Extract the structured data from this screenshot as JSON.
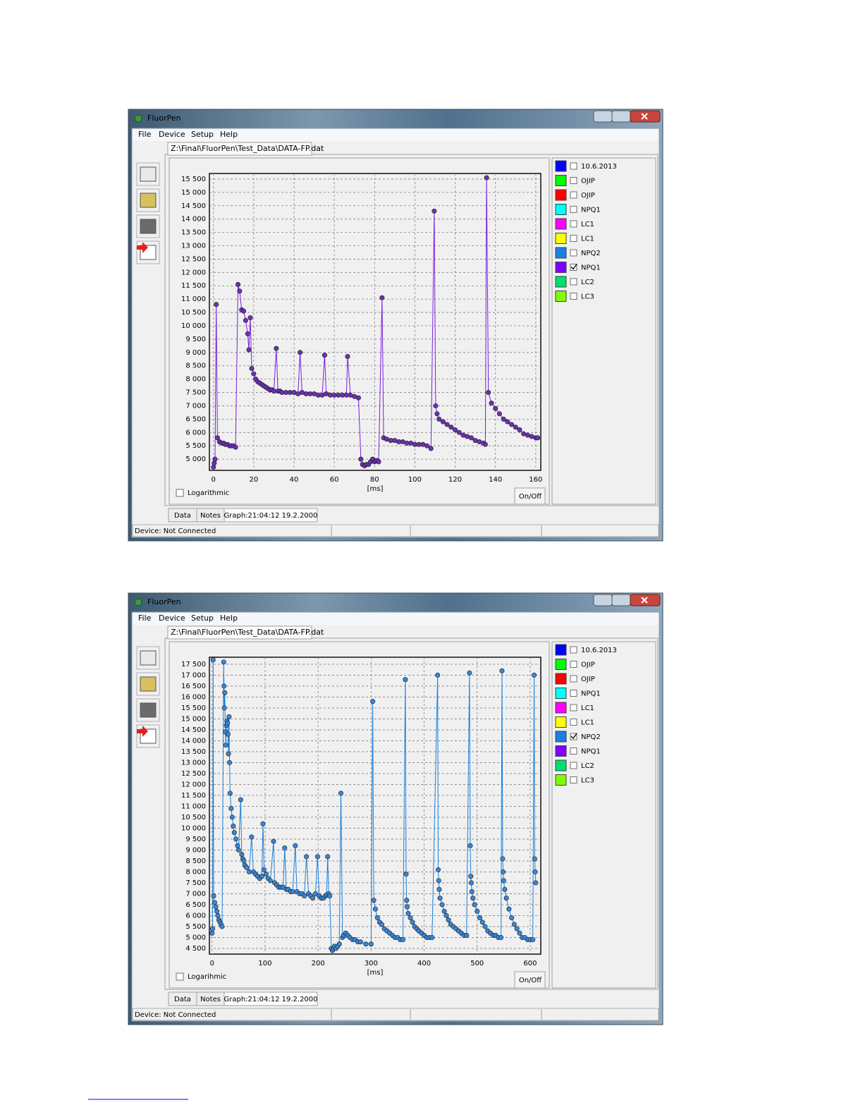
{
  "windows": [
    {
      "title": "FluorPen",
      "menu": [
        "File",
        "Device",
        "Setup",
        "Help"
      ],
      "file_tab": "Z:\\Final\\FluorPen\\Test_Data\\DATA-FP.dat",
      "legend": [
        {
          "label": "10.6.2013",
          "color": "#0000ff",
          "checked": false
        },
        {
          "label": "OJIP",
          "color": "#00ff00",
          "checked": false
        },
        {
          "label": "OJIP",
          "color": "#ff0000",
          "checked": false
        },
        {
          "label": "NPQ1",
          "color": "#00ffff",
          "checked": false
        },
        {
          "label": "LC1",
          "color": "#ff00ff",
          "checked": false
        },
        {
          "label": "LC1",
          "color": "#ffff00",
          "checked": false
        },
        {
          "label": "NPQ2",
          "color": "#1a80e6",
          "checked": false
        },
        {
          "label": "NPQ1",
          "color": "#8000ff",
          "checked": true
        },
        {
          "label": "LC2",
          "color": "#00e070",
          "checked": false
        },
        {
          "label": "LC3",
          "color": "#80ff00",
          "checked": false
        }
      ],
      "log_label": "Logarithmic",
      "on_off": "On/Off",
      "tabs": [
        "Data",
        "Notes",
        "Graph:21:04:12  19.2.2000"
      ],
      "status": "Device: Not Connected"
    },
    {
      "title": "FluorPen",
      "menu": [
        "File",
        "Device",
        "Setup",
        "Help"
      ],
      "file_tab": "Z:\\Final\\FluorPen\\Test_Data\\DATA-FP.dat",
      "legend": [
        {
          "label": "10.6.2013",
          "color": "#0000ff",
          "checked": false
        },
        {
          "label": "OJIP",
          "color": "#00ff00",
          "checked": false
        },
        {
          "label": "OJIP",
          "color": "#ff0000",
          "checked": false
        },
        {
          "label": "NPQ1",
          "color": "#00ffff",
          "checked": false
        },
        {
          "label": "LC1",
          "color": "#ff00ff",
          "checked": false
        },
        {
          "label": "LC1",
          "color": "#ffff00",
          "checked": false
        },
        {
          "label": "NPQ2",
          "color": "#1a80e6",
          "checked": true
        },
        {
          "label": "NPQ1",
          "color": "#8000ff",
          "checked": false
        },
        {
          "label": "LC2",
          "color": "#00e070",
          "checked": false
        },
        {
          "label": "LC3",
          "color": "#80ff00",
          "checked": false
        }
      ],
      "log_label": "Logarihmic",
      "on_off": "On/Off",
      "tabs": [
        "Data",
        "Notes",
        "Graph:21:04:12  19.2.2000"
      ],
      "status": "Device: Not Connected"
    }
  ],
  "chart_data": [
    {
      "type": "line",
      "x_label": "[ms]",
      "grid": true,
      "x": [
        0,
        0.4,
        0.8,
        1.4,
        2,
        3,
        4,
        5,
        6,
        7,
        8,
        9,
        10,
        11,
        12.2,
        13,
        14,
        15,
        16,
        17,
        17.6,
        18.3,
        19,
        20,
        21,
        22,
        23,
        24,
        25,
        26,
        27,
        28,
        29,
        30,
        31.2,
        32,
        33,
        34,
        36,
        38,
        40,
        42,
        43,
        44,
        46,
        48,
        50,
        52,
        54,
        55.2,
        56,
        58,
        60,
        62,
        64,
        66,
        66.6,
        68,
        70,
        72,
        73.2,
        74,
        75,
        76,
        77,
        78,
        79,
        80,
        81,
        82,
        83.7,
        84.5,
        86,
        88,
        90,
        92,
        94,
        96,
        98,
        100,
        102,
        104,
        106,
        108,
        109.6,
        110.3,
        111,
        112,
        114,
        116,
        118,
        120,
        122,
        124,
        126,
        128,
        130,
        132,
        134,
        135,
        135.6,
        136.5,
        138,
        140,
        142,
        144,
        146,
        148,
        150,
        152,
        154,
        156,
        158,
        160,
        161
      ],
      "series": [
        {
          "color": "#7a1fe0",
          "marker_color": "#6a32b0",
          "values": [
            4700,
            4850,
            5000,
            10800,
            5800,
            5650,
            5600,
            5600,
            5550,
            5550,
            5500,
            5500,
            5500,
            5450,
            11550,
            11300,
            10600,
            10550,
            10200,
            9700,
            9100,
            10300,
            8400,
            8200,
            8000,
            7900,
            7850,
            7800,
            7750,
            7700,
            7650,
            7600,
            7600,
            7550,
            9150,
            7550,
            7550,
            7500,
            7500,
            7500,
            7500,
            7450,
            9000,
            7500,
            7450,
            7450,
            7450,
            7400,
            7400,
            8900,
            7450,
            7400,
            7400,
            7400,
            7400,
            7400,
            8850,
            7400,
            7350,
            7300,
            5000,
            4800,
            4750,
            4800,
            4800,
            4900,
            5000,
            4900,
            4950,
            4900,
            11050,
            5800,
            5750,
            5700,
            5700,
            5650,
            5650,
            5600,
            5600,
            5550,
            5550,
            5550,
            5500,
            5400,
            14300,
            7000,
            6700,
            6500,
            6400,
            6300,
            6200,
            6100,
            6000,
            5900,
            5850,
            5800,
            5700,
            5650,
            5600,
            5550,
            15550,
            7500,
            7100,
            6900,
            6700,
            6500,
            6400,
            6300,
            6200,
            6100,
            5950,
            5900,
            5850,
            5800,
            5800
          ]
        }
      ],
      "xlim": [
        -2,
        162.5
      ],
      "ylim": [
        4580,
        15710
      ],
      "xticks": [
        0,
        20,
        40,
        60,
        80,
        100,
        120,
        140,
        160
      ],
      "yticks": [
        {
          "value": 5000,
          "label": "5 000"
        },
        {
          "value": 5500,
          "label": "5 500"
        },
        {
          "value": 6000,
          "label": "6 000"
        },
        {
          "value": 6500,
          "label": "6 500"
        },
        {
          "value": 7000,
          "label": "7 000"
        },
        {
          "value": 7500,
          "label": "7 500"
        },
        {
          "value": 8000,
          "label": "8 000"
        },
        {
          "value": 8500,
          "label": "8 500"
        },
        {
          "value": 9000,
          "label": "9 000"
        },
        {
          "value": 9500,
          "label": "9 500"
        },
        {
          "value": 10000,
          "label": "10 000"
        },
        {
          "value": 10500,
          "label": "10 500"
        },
        {
          "value": 11000,
          "label": "11 000"
        },
        {
          "value": 11500,
          "label": "11 500"
        },
        {
          "value": 12000,
          "label": "12 000"
        },
        {
          "value": 12500,
          "label": "12 500"
        },
        {
          "value": 13000,
          "label": "13 000"
        },
        {
          "value": 13500,
          "label": "13 500"
        },
        {
          "value": 14000,
          "label": "14 000"
        },
        {
          "value": 14500,
          "label": "14 500"
        },
        {
          "value": 15000,
          "label": "15 000"
        },
        {
          "value": 15500,
          "label": "15 500"
        }
      ]
    },
    {
      "type": "line",
      "x_label": "[ms]",
      "grid": true,
      "x": [
        0,
        1,
        2,
        3,
        5,
        7,
        9,
        11,
        13,
        15,
        17,
        19,
        22,
        22.5,
        23,
        24,
        25,
        26,
        27,
        28,
        29,
        30,
        31,
        32,
        33,
        34,
        36,
        38,
        40,
        42,
        45,
        48,
        50,
        54,
        56,
        58,
        60,
        62,
        65,
        70,
        74.5,
        78,
        82,
        86,
        90,
        94,
        96,
        98,
        102,
        106,
        110,
        116,
        118,
        122,
        126,
        130,
        134,
        137,
        140,
        144,
        148,
        152,
        157,
        160,
        165,
        170,
        174,
        178,
        182,
        186,
        190,
        195,
        199,
        202,
        206,
        210,
        214,
        216,
        218,
        220,
        222,
        225,
        227,
        229,
        231,
        234,
        237,
        240,
        243,
        246,
        248,
        252,
        256,
        260,
        265,
        270,
        275,
        280,
        290,
        300,
        303,
        305,
        308,
        312,
        316,
        320,
        325,
        330,
        335,
        340,
        345,
        350,
        355,
        360,
        364.5,
        366,
        367,
        368,
        370,
        374,
        378,
        382,
        386,
        390,
        395,
        400,
        405,
        410,
        415,
        425.5,
        426.5,
        427.5,
        428.5,
        430,
        434,
        438,
        442,
        446,
        450,
        455,
        460,
        465,
        470,
        475,
        480,
        485.6,
        487,
        488,
        489,
        490,
        492,
        495,
        500,
        505,
        510,
        515,
        520,
        525,
        530,
        535,
        540,
        545,
        546.8,
        548,
        549,
        550,
        552,
        555,
        560,
        565,
        570,
        575,
        580,
        585,
        590,
        595,
        600,
        605,
        607.5,
        608.5,
        609.5,
        610.5
      ],
      "series": [
        {
          "color": "#1a80d8",
          "marker_color": "#3a86d8",
          "values": [
            5200,
            5400,
            17700,
            6900,
            6600,
            6400,
            6200,
            6000,
            5800,
            5700,
            5600,
            5500,
            17600,
            16500,
            15500,
            16200,
            14400,
            13800,
            14700,
            14900,
            14800,
            14300,
            13400,
            15100,
            13000,
            11600,
            10900,
            10500,
            10100,
            9800,
            9500,
            9200,
            9000,
            11300,
            8800,
            8600,
            8500,
            8300,
            8200,
            8000,
            9600,
            8000,
            7900,
            7800,
            7700,
            7800,
            10200,
            8100,
            7900,
            7700,
            7600,
            9400,
            7500,
            7400,
            7300,
            7300,
            7300,
            9100,
            7200,
            7200,
            7100,
            7100,
            9200,
            7100,
            7000,
            7000,
            6900,
            8700,
            7000,
            6900,
            6800,
            7000,
            8700,
            6900,
            6800,
            6800,
            6900,
            6950,
            8700,
            7000,
            6900,
            4500,
            4400,
            4500,
            4600,
            4500,
            4600,
            4700,
            11600,
            5000,
            5100,
            5200,
            5100,
            5000,
            4900,
            4900,
            4800,
            4800,
            4700,
            4700,
            15800,
            6700,
            6300,
            5900,
            5700,
            5600,
            5400,
            5300,
            5200,
            5100,
            5000,
            5000,
            4900,
            4900,
            16800,
            7900,
            6700,
            6400,
            6100,
            5900,
            5700,
            5500,
            5400,
            5300,
            5200,
            5100,
            5000,
            5000,
            5000,
            17000,
            8100,
            7600,
            7200,
            6800,
            6500,
            6200,
            6000,
            5800,
            5600,
            5500,
            5400,
            5300,
            5200,
            5100,
            5100,
            17100,
            9200,
            7800,
            7500,
            7100,
            6800,
            6500,
            6200,
            5900,
            5700,
            5500,
            5300,
            5200,
            5100,
            5100,
            5000,
            5000,
            17200,
            8600,
            8000,
            7600,
            7200,
            6800,
            6300,
            5900,
            5600,
            5400,
            5200,
            5000,
            5000,
            4900,
            4900,
            4900,
            17000,
            8600,
            8000,
            7500
          ]
        }
      ],
      "xlim": [
        -5,
        620
      ],
      "ylim": [
        4240,
        17820
      ],
      "xticks": [
        0,
        100,
        200,
        300,
        400,
        500,
        600
      ],
      "yticks": [
        {
          "value": 4500,
          "label": "4 500"
        },
        {
          "value": 5000,
          "label": "5 000"
        },
        {
          "value": 5500,
          "label": "5 500"
        },
        {
          "value": 6000,
          "label": "6 000"
        },
        {
          "value": 6500,
          "label": "6 500"
        },
        {
          "value": 7000,
          "label": "7 000"
        },
        {
          "value": 7500,
          "label": "7 500"
        },
        {
          "value": 8000,
          "label": "8 000"
        },
        {
          "value": 8500,
          "label": "8 500"
        },
        {
          "value": 9000,
          "label": "9 000"
        },
        {
          "value": 9500,
          "label": "9 500"
        },
        {
          "value": 10000,
          "label": "10 000"
        },
        {
          "value": 10500,
          "label": "10 500"
        },
        {
          "value": 11000,
          "label": "11 000"
        },
        {
          "value": 11500,
          "label": "11 500"
        },
        {
          "value": 12000,
          "label": "12 000"
        },
        {
          "value": 12500,
          "label": "12 500"
        },
        {
          "value": 13000,
          "label": "13 000"
        },
        {
          "value": 13500,
          "label": "13 500"
        },
        {
          "value": 14000,
          "label": "14 000"
        },
        {
          "value": 14500,
          "label": "14 500"
        },
        {
          "value": 15000,
          "label": "15 000"
        },
        {
          "value": 15500,
          "label": "15 500"
        },
        {
          "value": 16000,
          "label": "16 000"
        },
        {
          "value": 16500,
          "label": "16 500"
        },
        {
          "value": 17000,
          "label": "17 000"
        },
        {
          "value": 17500,
          "label": "17 500"
        }
      ]
    }
  ]
}
